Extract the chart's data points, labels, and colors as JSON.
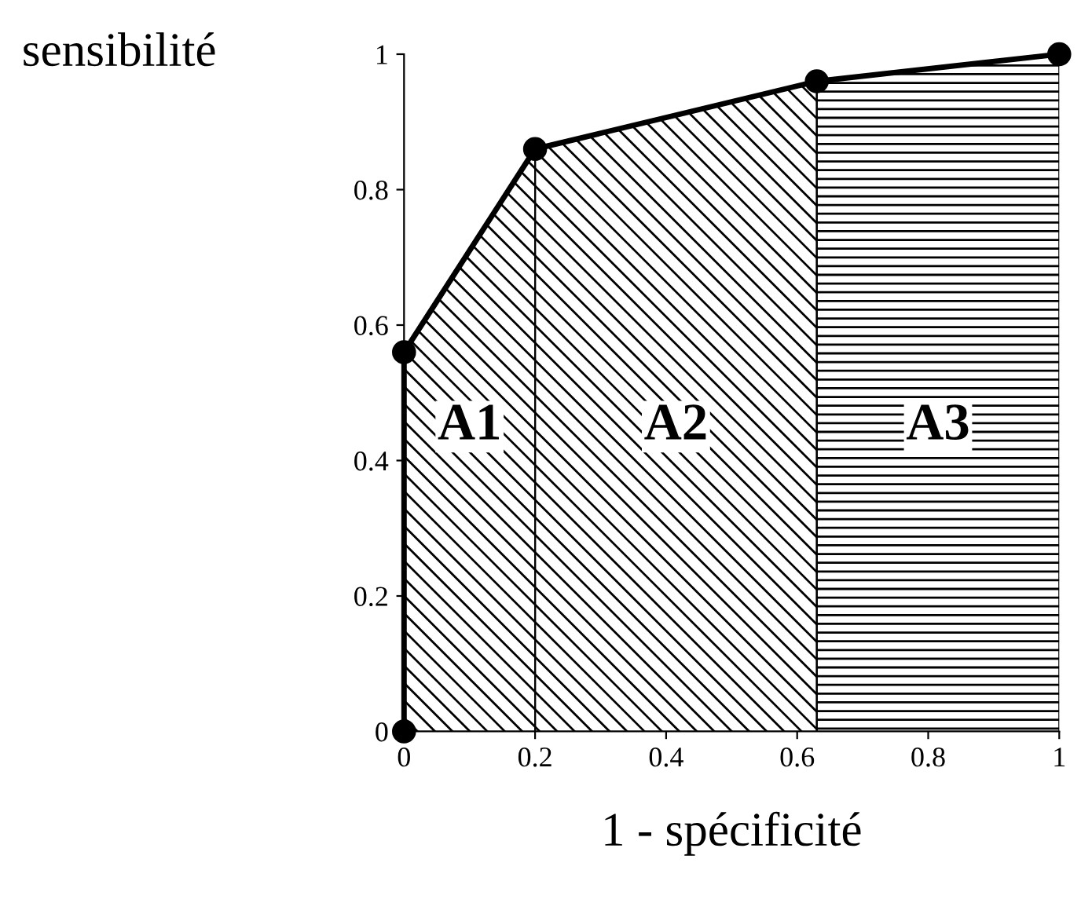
{
  "chart_data": {
    "type": "line",
    "xlabel": "1 - spécificité",
    "ylabel": "sensibilité",
    "series": [
      {
        "color": "#000000",
        "x": [
          0,
          0,
          0.2,
          0.63,
          1
        ],
        "values": [
          0,
          0.56,
          0.86,
          0.96,
          1
        ]
      }
    ],
    "marker": "circle",
    "line_style": "solid",
    "annotations": [
      {
        "text": "A1",
        "x": 0.1,
        "y": 0.45
      },
      {
        "text": "A2",
        "x": 0.415,
        "y": 0.45
      },
      {
        "text": "A3",
        "x": 0.815,
        "y": 0.45
      }
    ],
    "xlim": [
      0,
      1
    ],
    "ylim": [
      0,
      1
    ],
    "xticks": [
      0,
      0.2,
      0.4,
      0.6,
      0.8,
      1
    ],
    "yticks": [
      0,
      0.2,
      0.4,
      0.6,
      0.8,
      1
    ],
    "grid": false,
    "legend": false
  }
}
